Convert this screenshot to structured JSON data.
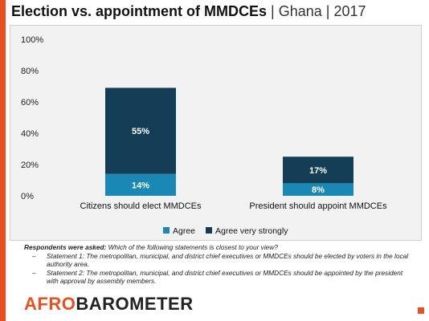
{
  "title": {
    "main": "Election vs. appointment of MMDCEs",
    "separator": " | ",
    "country": "Ghana",
    "year": "2017"
  },
  "colors": {
    "accent": "#e8501f",
    "agree": "#1a88b5",
    "agree_very_strongly": "#123d55",
    "plot_background": "#f2f2f2"
  },
  "chart_data": {
    "type": "bar",
    "stacked": true,
    "categories": [
      "Citizens should elect MMDCEs",
      "President should appoint MMDCEs"
    ],
    "series": [
      {
        "name": "Agree",
        "values": [
          14,
          8
        ],
        "labels": [
          "14%",
          "8%"
        ],
        "color": "#1a88b5"
      },
      {
        "name": "Agree very strongly",
        "values": [
          55,
          17
        ],
        "labels": [
          "55%",
          "17%"
        ],
        "color": "#123d55"
      }
    ],
    "ylim": [
      0,
      100
    ],
    "yticks": [
      "0%",
      "20%",
      "40%",
      "60%",
      "80%",
      "100%"
    ],
    "grid": false,
    "legend": "bottom"
  },
  "note": {
    "lead": "Respondents were asked:",
    "question": " Which of the following statements is closest to your view?",
    "statements": [
      {
        "label": "Statement 1:",
        "text": " The metropolitan, municipal, and district chief executives or MMDCEs should be elected by voters in the local authority area."
      },
      {
        "label": "Statement 2:",
        "text": " The metropolitan, municipal, and district chief executives or MMDCEs should be appointed by the president with approval by assembly members."
      }
    ]
  },
  "logo": {
    "text": "AFROBAROMETER",
    "part1": "AFRO",
    "part2": "BAROMETER"
  }
}
